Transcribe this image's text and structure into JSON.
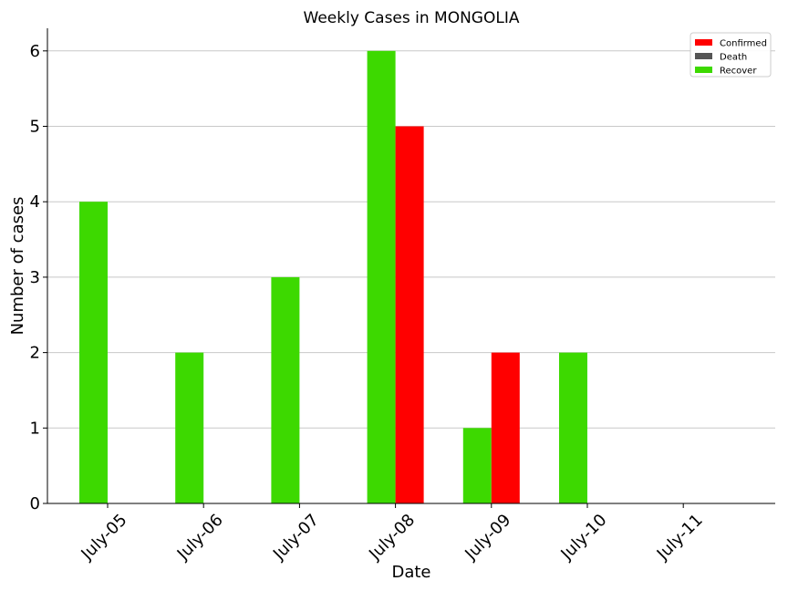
{
  "chart_data": {
    "type": "bar",
    "title": "Weekly Cases in MONGOLIA",
    "xlabel": "Date",
    "ylabel": "Number of cases",
    "categories": [
      "July-05",
      "July-06",
      "July-07",
      "July-08",
      "July-09",
      "July-10",
      "July-11"
    ],
    "series": [
      {
        "name": "Confirmed",
        "color": "#ff0000",
        "values": [
          0,
          0,
          0,
          5,
          2,
          0,
          0
        ]
      },
      {
        "name": "Death",
        "color": "#555555",
        "values": [
          0,
          0,
          0,
          0,
          0,
          0,
          0
        ]
      },
      {
        "name": "Recover",
        "color": "#3dd900",
        "values": [
          4,
          2,
          3,
          6,
          1,
          2,
          0
        ]
      }
    ],
    "ylim": [
      0,
      6.3
    ],
    "yticks": [
      0,
      1,
      2,
      3,
      4,
      5,
      6
    ],
    "grid": "y",
    "legend_position": "top-right"
  }
}
